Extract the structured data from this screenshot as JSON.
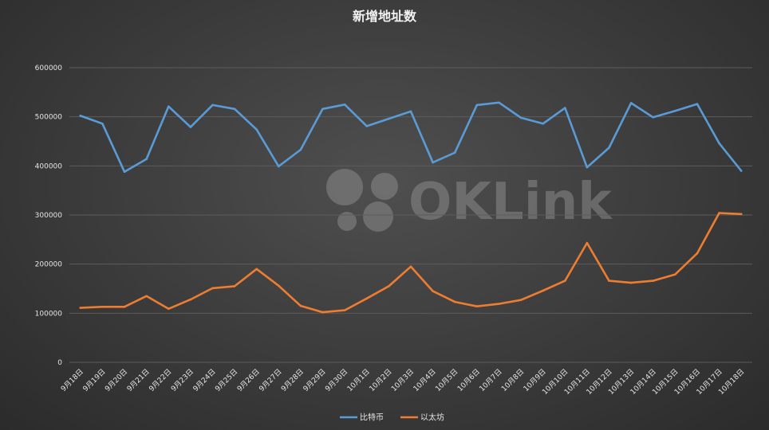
{
  "watermark": {
    "text": "OKLink"
  },
  "chart_data": {
    "type": "line",
    "title": "新增地址数",
    "xlabel": "",
    "ylabel": "",
    "ylim": [
      0,
      600000
    ],
    "yticks": [
      0,
      100000,
      200000,
      300000,
      400000,
      500000,
      600000
    ],
    "grid": true,
    "legend_position": "bottom",
    "categories": [
      "9月18日",
      "9月19日",
      "9月20日",
      "9月21日",
      "9月22日",
      "9月23日",
      "9月24日",
      "9月25日",
      "9月26日",
      "9月27日",
      "9月28日",
      "9月29日",
      "9月30日",
      "10月1日",
      "10月2日",
      "10月3日",
      "10月4日",
      "10月5日",
      "10月6日",
      "10月7日",
      "10月8日",
      "10月9日",
      "10月10日",
      "10月11日",
      "10月12日",
      "10月13日",
      "10月14日",
      "10月15日",
      "10月16日",
      "10月17日",
      "10月18日"
    ],
    "series": [
      {
        "name": "比特币",
        "color": "#5b9bd5",
        "values": [
          502000,
          486000,
          388000,
          414000,
          521000,
          479000,
          524000,
          516000,
          474000,
          399000,
          433000,
          516000,
          525000,
          481000,
          496000,
          511000,
          407000,
          427000,
          524000,
          529000,
          498000,
          486000,
          518000,
          397000,
          437000,
          528000,
          499000,
          512000,
          526000,
          446000,
          390000
        ]
      },
      {
        "name": "以太坊",
        "color": "#ed7d31",
        "values": [
          111000,
          113000,
          113000,
          135000,
          109000,
          128000,
          151000,
          155000,
          190000,
          156000,
          115000,
          102000,
          106000,
          130000,
          155000,
          195000,
          145000,
          123000,
          114000,
          119000,
          127000,
          146000,
          166000,
          243000,
          166000,
          162000,
          166000,
          179000,
          222000,
          304000,
          302000
        ]
      }
    ]
  }
}
